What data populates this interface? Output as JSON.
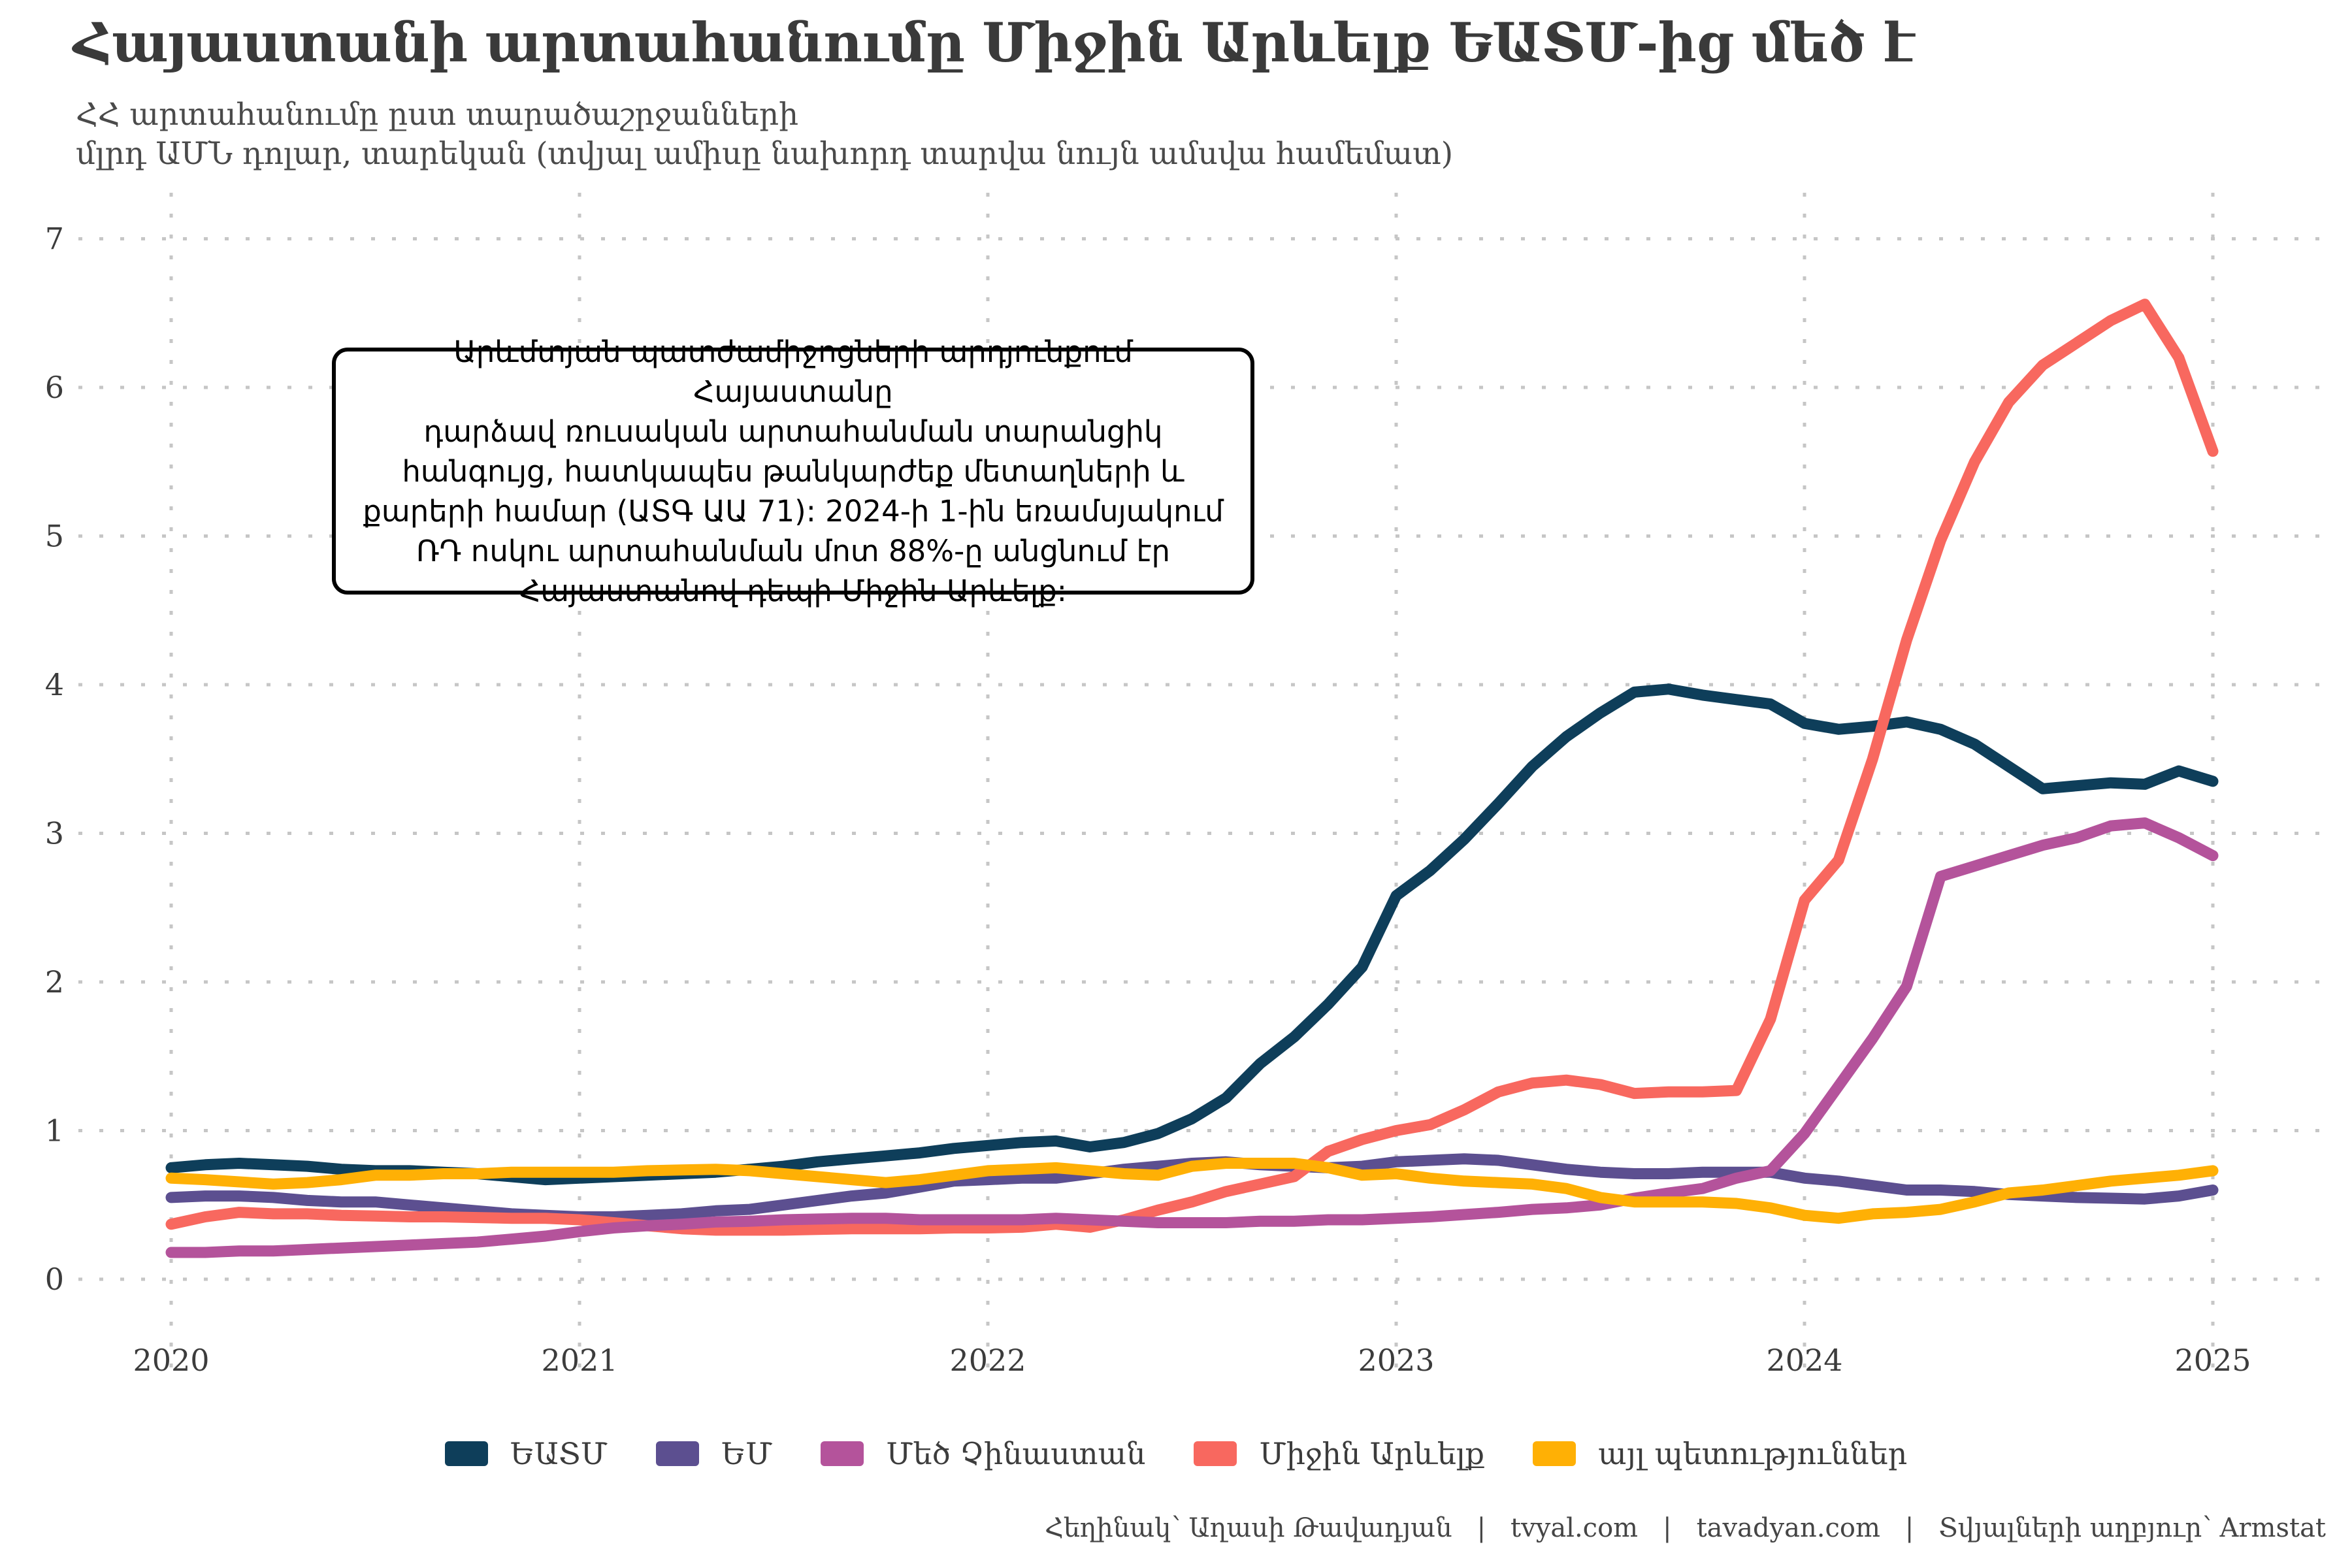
{
  "title": "Հայաստանի արտահանումը Միջին Արևելք ԵԱՏՄ-ից մեծ է",
  "subtitle": {
    "line1": "ՀՀ արտահանումը ըստ տարածաշրջանների",
    "line2": "մլրդ ԱՄՆ դոլար, տարեկան (տվյալ ամիսը նախորդ տարվա նույն ամսվա համեմատ)"
  },
  "annotation": {
    "text": "Արևմտյան պատժամիջոցների արդյունքում Հայաստանը\nդարձավ ռուսական արտահանման տարանցիկ\nհանգույց, հատկապես թանկարժեք մետաղների և\nքարերի համար (ԱՏԳ ԱԱ 71): 2024-ի 1-ին եռամսյակում\nՌԴ ոսկու արտահանման մոտ 88%-ը անցնում էր\nՀայաստանով դեպի Միջին Արևելք:"
  },
  "footer": {
    "separator": "|",
    "parts": [
      "Հեղինակ՝ Աղասի Թավադյան",
      "tvyal.com",
      "tavadyan.com",
      "Տվյալների աղբյուր՝ Armstat"
    ]
  },
  "colors": {
    "grid": "#c6c6c6",
    "axis_text": "#3c3c3c",
    "background": "#ffffff"
  },
  "chart_data": {
    "type": "line",
    "title": "Հայաստանի արտահանումը Միջին Արևելք ԵԱՏՄ-ից մեծ է",
    "xlabel": "",
    "ylabel": "մլրդ ԱՄՆ դոլար",
    "x_unit": "monthly, 2020-01 through 2025-01",
    "x_start_year": 2020,
    "x_ticks": [
      2020,
      2021,
      2022,
      2023,
      2024,
      2025
    ],
    "y_ticks": [
      0,
      1,
      2,
      3,
      4,
      5,
      6,
      7
    ],
    "ylim": [
      0,
      7
    ],
    "grid": "dotted",
    "legend_position": "bottom-center",
    "series": [
      {
        "name": "ԵԱՏՄ",
        "color": "#0e3e5a",
        "values": [
          0.75,
          0.77,
          0.78,
          0.77,
          0.76,
          0.74,
          0.73,
          0.73,
          0.72,
          0.71,
          0.69,
          0.67,
          0.68,
          0.69,
          0.7,
          0.71,
          0.72,
          0.74,
          0.76,
          0.79,
          0.81,
          0.83,
          0.85,
          0.88,
          0.9,
          0.92,
          0.93,
          0.89,
          0.92,
          0.98,
          1.08,
          1.22,
          1.45,
          1.63,
          1.85,
          2.1,
          2.58,
          2.75,
          2.96,
          3.2,
          3.45,
          3.65,
          3.81,
          3.95,
          3.97,
          3.93,
          3.9,
          3.87,
          3.74,
          3.7,
          3.72,
          3.75,
          3.7,
          3.6,
          3.45,
          3.3,
          3.32,
          3.34,
          3.33,
          3.42,
          3.35
        ]
      },
      {
        "name": "ԵՄ",
        "color": "#5c4f90",
        "values": [
          0.55,
          0.56,
          0.56,
          0.55,
          0.53,
          0.52,
          0.52,
          0.5,
          0.48,
          0.46,
          0.44,
          0.43,
          0.42,
          0.42,
          0.43,
          0.44,
          0.46,
          0.47,
          0.5,
          0.53,
          0.56,
          0.58,
          0.62,
          0.66,
          0.67,
          0.68,
          0.68,
          0.71,
          0.74,
          0.76,
          0.78,
          0.79,
          0.77,
          0.76,
          0.75,
          0.76,
          0.79,
          0.8,
          0.81,
          0.8,
          0.77,
          0.74,
          0.72,
          0.71,
          0.71,
          0.72,
          0.72,
          0.72,
          0.68,
          0.66,
          0.63,
          0.6,
          0.6,
          0.59,
          0.57,
          0.56,
          0.55,
          0.545,
          0.54,
          0.56,
          0.6
        ]
      },
      {
        "name": "Մեծ Չինաստան",
        "color": "#b4539b",
        "values": [
          0.18,
          0.18,
          0.19,
          0.19,
          0.2,
          0.21,
          0.22,
          0.23,
          0.24,
          0.25,
          0.27,
          0.29,
          0.32,
          0.345,
          0.36,
          0.37,
          0.385,
          0.39,
          0.4,
          0.405,
          0.41,
          0.41,
          0.4,
          0.4,
          0.4,
          0.4,
          0.41,
          0.4,
          0.39,
          0.38,
          0.38,
          0.38,
          0.39,
          0.39,
          0.4,
          0.4,
          0.41,
          0.42,
          0.435,
          0.45,
          0.47,
          0.48,
          0.5,
          0.545,
          0.58,
          0.61,
          0.68,
          0.73,
          0.98,
          1.3,
          1.62,
          1.97,
          2.71,
          2.78,
          2.85,
          2.92,
          2.97,
          3.05,
          3.07,
          2.97,
          2.85
        ]
      },
      {
        "name": "Միջին Արևելք",
        "color": "#f8685f",
        "values": [
          0.37,
          0.42,
          0.45,
          0.44,
          0.44,
          0.43,
          0.425,
          0.42,
          0.42,
          0.415,
          0.41,
          0.41,
          0.4,
          0.38,
          0.36,
          0.34,
          0.33,
          0.33,
          0.33,
          0.335,
          0.34,
          0.34,
          0.34,
          0.345,
          0.345,
          0.35,
          0.37,
          0.35,
          0.4,
          0.465,
          0.52,
          0.59,
          0.64,
          0.69,
          0.86,
          0.94,
          1.0,
          1.04,
          1.14,
          1.26,
          1.32,
          1.34,
          1.31,
          1.25,
          1.26,
          1.26,
          1.27,
          1.75,
          2.55,
          2.82,
          3.5,
          4.3,
          4.97,
          5.5,
          5.9,
          6.15,
          6.3,
          6.45,
          6.56,
          6.2,
          5.57
        ]
      },
      {
        "name": "այլ պետություններ",
        "color": "#ffb005",
        "values": [
          0.68,
          0.67,
          0.655,
          0.64,
          0.65,
          0.67,
          0.7,
          0.7,
          0.71,
          0.71,
          0.72,
          0.72,
          0.72,
          0.72,
          0.73,
          0.735,
          0.74,
          0.73,
          0.71,
          0.69,
          0.67,
          0.65,
          0.67,
          0.7,
          0.73,
          0.74,
          0.75,
          0.73,
          0.71,
          0.7,
          0.76,
          0.78,
          0.78,
          0.78,
          0.75,
          0.7,
          0.71,
          0.68,
          0.66,
          0.65,
          0.64,
          0.61,
          0.55,
          0.52,
          0.52,
          0.52,
          0.51,
          0.48,
          0.43,
          0.41,
          0.44,
          0.45,
          0.47,
          0.52,
          0.58,
          0.6,
          0.63,
          0.66,
          0.68,
          0.7,
          0.73
        ]
      }
    ],
    "draw_order": [
      0,
      1,
      3,
      2,
      4
    ]
  }
}
